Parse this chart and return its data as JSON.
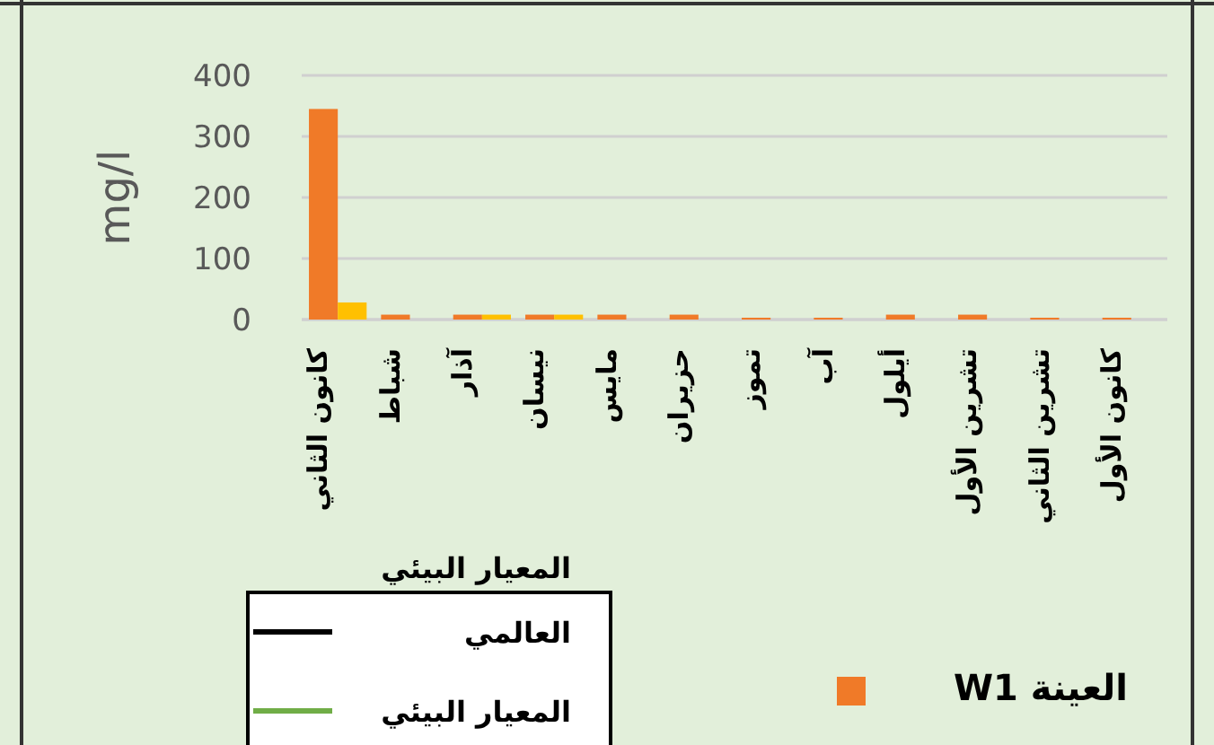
{
  "chart_data": {
    "type": "bar",
    "ylabel": "mg/l",
    "categories": [
      "كانون الثاني",
      "شباط",
      "آذار",
      "نيسان",
      "مايس",
      "حزيران",
      "تموز",
      "آب",
      "أيلول",
      "تشرين الأول",
      "تشرين الثاني",
      "كانون الأول"
    ],
    "series": [
      {
        "name": "العينة W1",
        "color": "#f07a28",
        "values": [
          345,
          8,
          8,
          8,
          8,
          8,
          3,
          3,
          8,
          8,
          3,
          3
        ]
      },
      {
        "color": "#ffc000",
        "values": [
          28,
          null,
          8,
          8,
          null,
          null,
          null,
          null,
          null,
          null,
          null,
          null
        ]
      },
      {
        "type": "line",
        "name": "المعيار البيئي العالمي",
        "color": "#000000",
        "values": [
          null,
          null,
          null,
          null,
          null,
          null,
          null,
          null,
          null,
          null,
          null,
          null
        ]
      },
      {
        "type": "line",
        "name": "المعيار البيئي",
        "color": "#70ad47",
        "values": [
          null,
          null,
          null,
          null,
          null,
          null,
          null,
          null,
          null,
          null,
          null,
          null
        ]
      }
    ],
    "ylim": [
      0,
      400
    ],
    "yticks": [
      0,
      100,
      200,
      300,
      400
    ],
    "grid": "y",
    "legend": "bottom"
  }
}
